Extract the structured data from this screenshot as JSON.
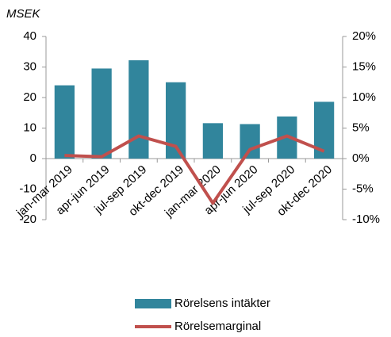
{
  "chart_data": {
    "type": "bar-line",
    "axis_label": "MSEK",
    "categories": [
      "jan-mar 2019",
      "apr-jun 2019",
      "jul-sep 2019",
      "okt-dec 2019",
      "jan-mar 2020",
      "apr-jun 2020",
      "jul-sep 2020",
      "okt-dec 2020"
    ],
    "series": [
      {
        "name": "Rörelsens intäkter",
        "type": "bar",
        "color": "#31859c",
        "axis": "y",
        "values": [
          24,
          29.5,
          32.2,
          25,
          11.6,
          11.3,
          13.8,
          18.6
        ]
      },
      {
        "name": "Rörelsemarginal",
        "type": "line",
        "color": "#c0504d",
        "axis": "y2",
        "values": [
          0.5,
          0.3,
          3.7,
          2,
          -7.3,
          1.5,
          3.7,
          1.2
        ]
      }
    ],
    "ylim": [
      -20,
      40
    ],
    "yticks": [
      -20,
      -10,
      0,
      10,
      20,
      30,
      40
    ],
    "y2lim": [
      -10,
      20
    ],
    "y2ticks": [
      {
        "value": -10,
        "label": "-10%"
      },
      {
        "value": -5,
        "label": "-5%"
      },
      {
        "value": 0,
        "label": "0%"
      },
      {
        "value": 5,
        "label": "5%"
      },
      {
        "value": 10,
        "label": "10%"
      },
      {
        "value": 15,
        "label": "15%"
      },
      {
        "value": 20,
        "label": "20%"
      }
    ],
    "legend": "bottom"
  }
}
